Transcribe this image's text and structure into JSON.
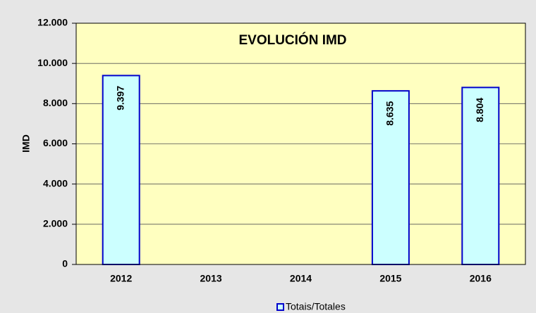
{
  "chart_data": {
    "type": "bar",
    "title": "EVOLUCIÓN IMD",
    "y_label": "IMD",
    "categories": [
      "2012",
      "2013",
      "2014",
      "2015",
      "2016"
    ],
    "series": [
      {
        "name": "Totais/Totales",
        "color": "#ccffff",
        "edge_color": "#0000cc",
        "values": [
          9397,
          null,
          null,
          8635,
          8804
        ],
        "value_labels": [
          "9.397",
          null,
          null,
          "8.635",
          "8.804"
        ]
      }
    ],
    "ylim": [
      0,
      12000
    ],
    "yticks": [
      0,
      {
        "value": 2000,
        "label": "2.000"
      },
      {
        "value": 4000,
        "label": "4.000"
      },
      {
        "value": 6000,
        "label": "6.000"
      },
      {
        "value": 8000,
        "label": "8.000"
      },
      {
        "value": 10000,
        "label": "10.000"
      },
      {
        "value": 12000,
        "label": "12.000"
      }
    ],
    "grid": true,
    "legend": "bottom"
  }
}
